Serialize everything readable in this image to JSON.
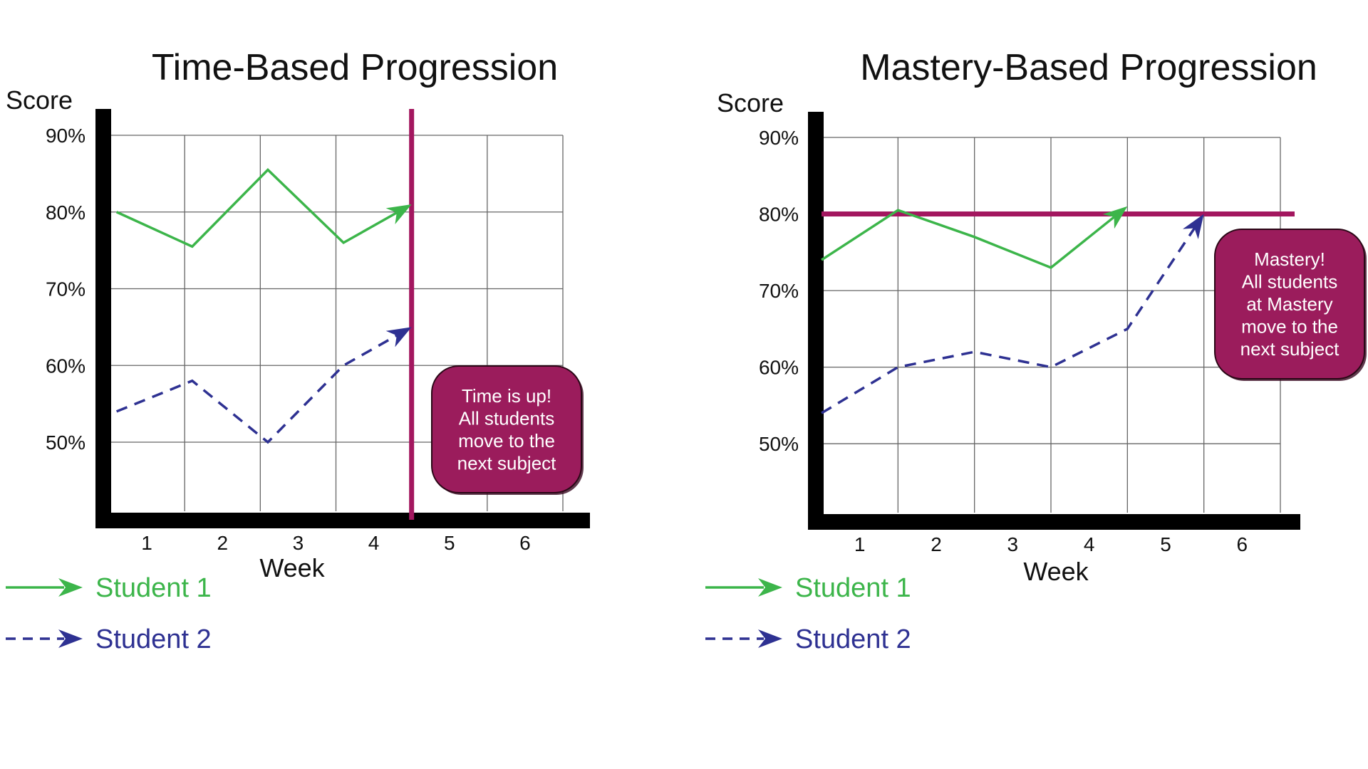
{
  "chart_data": [
    {
      "type": "line",
      "title": "Time-Based Progression",
      "ylabel": "Score",
      "xlabel": "Week",
      "x_ticks": [
        "1",
        "2",
        "3",
        "4",
        "5",
        "6"
      ],
      "y_ticks": [
        "90%",
        "80%",
        "70%",
        "60%",
        "50%"
      ],
      "xlim": [
        0.5,
        6.5
      ],
      "ylim": [
        41,
        90
      ],
      "grid": true,
      "series": [
        {
          "name": "Student 1",
          "style": "solid",
          "color": "#3cb54a",
          "points": [
            [
              0.6,
              80
            ],
            [
              1.6,
              75.5
            ],
            [
              2.6,
              85.5
            ],
            [
              3.6,
              76
            ],
            [
              4.5,
              81
            ]
          ]
        },
        {
          "name": "Student 2",
          "style": "dashed",
          "color": "#2e3192",
          "points": [
            [
              0.6,
              54
            ],
            [
              1.6,
              58
            ],
            [
              2.6,
              50
            ],
            [
              3.6,
              60
            ],
            [
              4.5,
              65
            ]
          ]
        }
      ],
      "marker_line": {
        "orientation": "vertical",
        "value": 4.5,
        "color": "#a3175f"
      },
      "callout": {
        "lines": [
          "Time is up!",
          "All students",
          "move to the",
          "next subject"
        ],
        "color": "#9b1c5c"
      }
    },
    {
      "type": "line",
      "title": "Mastery-Based Progression",
      "ylabel": "Score",
      "xlabel": "Week",
      "x_ticks": [
        "1",
        "2",
        "3",
        "4",
        "5",
        "6"
      ],
      "y_ticks": [
        "90%",
        "80%",
        "70%",
        "60%",
        "50%"
      ],
      "xlim": [
        0.5,
        6.5
      ],
      "ylim": [
        41,
        90
      ],
      "grid": true,
      "series": [
        {
          "name": "Student 1",
          "style": "solid",
          "color": "#3cb54a",
          "points": [
            [
              0.5,
              74
            ],
            [
              1.5,
              80.5
            ],
            [
              2.5,
              77
            ],
            [
              3.5,
              73
            ],
            [
              4.5,
              81
            ]
          ]
        },
        {
          "name": "Student 2",
          "style": "dashed",
          "color": "#2e3192",
          "points": [
            [
              0.5,
              54
            ],
            [
              1.5,
              60
            ],
            [
              2.5,
              62
            ],
            [
              3.5,
              60
            ],
            [
              4.5,
              65
            ],
            [
              5.5,
              80
            ]
          ]
        }
      ],
      "marker_line": {
        "orientation": "horizontal",
        "value": 80,
        "color": "#a3175f"
      },
      "callout": {
        "lines": [
          "Mastery!",
          "All students",
          "at Mastery",
          "move to the",
          "next subject"
        ],
        "color": "#9b1c5c"
      }
    }
  ],
  "legend": [
    {
      "label": "Student 1",
      "style": "solid",
      "color": "#3cb54a"
    },
    {
      "label": "Student 2",
      "style": "dashed",
      "color": "#2e3192"
    }
  ]
}
